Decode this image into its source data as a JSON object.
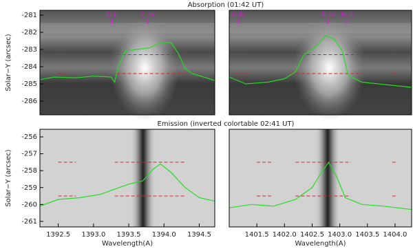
{
  "chart_data": [
    {
      "type": "line",
      "title": "Absorption (01:42 UT)",
      "ylabel": "Solar−Y (arcsec)",
      "xlim": [
        1392.24,
        1394.72
      ],
      "ylim": [
        -280.72,
        -286.8
      ],
      "yticks": [
        -281,
        -282,
        -283,
        -284,
        -285,
        -286
      ],
      "x": [
        1392.24,
        1392.45,
        1392.75,
        1393.0,
        1393.25,
        1393.3,
        1393.35,
        1393.45,
        1393.6,
        1393.8,
        1393.95,
        1394.1,
        1394.2,
        1394.3,
        1394.4,
        1394.72
      ],
      "values": [
        -284.75,
        -284.6,
        -284.65,
        -284.55,
        -284.6,
        -284.9,
        -284.0,
        -283.1,
        -283.0,
        -282.9,
        -282.6,
        -282.6,
        -283.2,
        -284.1,
        -284.4,
        -284.8
      ],
      "color": "#22dd22",
      "ref_y": [
        -283.3,
        -284.4
      ],
      "ref_spans": [
        [
          1392.5,
          1392.65
        ],
        [
          1393.33,
          1394.3
        ]
      ],
      "ref_color": "#e02020",
      "annotations": [
        {
          "text": "Si II",
          "x": 1393.26
        },
        {
          "text": "Si IV",
          "x": 1393.77
        }
      ],
      "annotation_color": "#cc22cc"
    },
    {
      "type": "line",
      "xlim": [
        1401.0,
        1404.3
      ],
      "ylim": [
        -280.72,
        -286.8
      ],
      "x": [
        1401.0,
        1401.3,
        1401.7,
        1402.0,
        1402.2,
        1402.35,
        1402.55,
        1402.75,
        1402.9,
        1403.05,
        1403.15,
        1403.4,
        1403.7,
        1404.0,
        1404.3
      ],
      "values": [
        -284.6,
        -285.0,
        -284.9,
        -284.7,
        -284.3,
        -283.3,
        -282.9,
        -282.2,
        -282.4,
        -283.1,
        -284.5,
        -284.9,
        -285.0,
        -285.1,
        -285.2
      ],
      "color": "#22dd22",
      "ref_y": [
        -283.3,
        -284.4
      ],
      "ref_spans": [
        [
          1401.1,
          1401.4
        ],
        [
          1402.1,
          1403.4
        ],
        [
          1403.95,
          1404.05
        ]
      ],
      "ref_color": "#e02020",
      "annotations": [
        {
          "text": "O IV",
          "x": 1401.17
        },
        {
          "text": "Si IV",
          "x": 1402.79
        },
        {
          "text": "Fe II",
          "x": 1403.13
        }
      ],
      "annotation_color": "#cc22cc"
    },
    {
      "type": "line",
      "title": "Emission (inverted colortable 02:41 UT)",
      "ylabel": "Solar−Y (arcsec)",
      "xlabel": "Wavelength(A)",
      "xlim": [
        1392.24,
        1394.72
      ],
      "ylim": [
        -255.55,
        -261.33
      ],
      "yticks": [
        -256,
        -257,
        -258,
        -259,
        -260,
        -261
      ],
      "xticks": [
        1392.5,
        {
          "value": 1393,
          "label": "1393.0"
        },
        1393.5,
        {
          "value": 1394,
          "label": "1394.0"
        },
        1394.5
      ],
      "x": [
        1392.24,
        1392.5,
        1392.8,
        1393.1,
        1393.3,
        1393.5,
        1393.7,
        1393.85,
        1393.95,
        1394.1,
        1394.3,
        1394.5,
        1394.72
      ],
      "values": [
        -260.1,
        -259.7,
        -259.6,
        -259.4,
        -259.1,
        -258.8,
        -258.6,
        -257.9,
        -257.6,
        -258.1,
        -259.0,
        -259.6,
        -259.8
      ],
      "color": "#22dd22",
      "ref_y": [
        -257.5,
        -259.5
      ],
      "ref_spans": [
        [
          1392.5,
          1392.75
        ],
        [
          1393.3,
          1394.3
        ]
      ],
      "ref_color": "#e02020"
    },
    {
      "type": "line",
      "xlabel": "Wavelength(A)",
      "xlim": [
        1401.0,
        1404.3
      ],
      "ylim": [
        -255.55,
        -261.33
      ],
      "xticks": [
        1401.5,
        {
          "value": 1402,
          "label": "1402.0"
        },
        1402.5,
        {
          "value": 1403,
          "label": "1403.0"
        },
        1403.5,
        {
          "value": 1404,
          "label": "1404.0"
        }
      ],
      "x": [
        1401.0,
        1401.4,
        1401.8,
        1402.2,
        1402.5,
        1402.65,
        1402.8,
        1402.95,
        1403.1,
        1403.4,
        1403.8,
        1404.3
      ],
      "values": [
        -260.2,
        -260.0,
        -260.1,
        -259.7,
        -259.0,
        -258.2,
        -257.5,
        -258.4,
        -259.6,
        -260.0,
        -260.1,
        -260.3
      ],
      "color": "#22dd22",
      "ref_y": [
        -257.5,
        -259.5
      ],
      "ref_spans": [
        [
          1401.5,
          1401.8
        ],
        [
          1402.2,
          1403.2
        ],
        [
          1403.95,
          1404.05
        ]
      ],
      "ref_color": "#e02020"
    }
  ]
}
